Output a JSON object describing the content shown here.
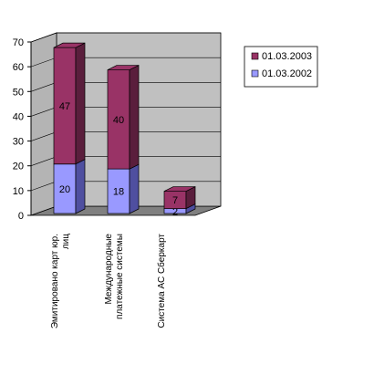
{
  "chart_data": {
    "type": "bar",
    "stacked": true,
    "three_d": true,
    "categories": [
      [
        "Эмитировано карт юр.",
        "лиц"
      ],
      [
        "Международные",
        "платежные системы"
      ],
      [
        "Система АС Сберкарт"
      ]
    ],
    "series": [
      {
        "name": "01.03.2002",
        "values": [
          20,
          18,
          2
        ],
        "color": "#9999ff",
        "side_color": "#4f4fa0"
      },
      {
        "name": "01.03.2003",
        "values": [
          47,
          40,
          7
        ],
        "color": "#993366",
        "side_color": "#5a1e3c"
      }
    ],
    "ylim": [
      0,
      70
    ],
    "yticks": [
      0,
      10,
      20,
      30,
      40,
      50,
      60,
      70
    ],
    "grid": true,
    "legend_position": "top-right",
    "wall_color": "#c0c0c0",
    "floor_color": "#808080"
  }
}
